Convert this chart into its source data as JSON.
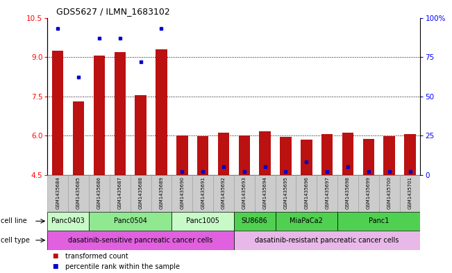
{
  "title": "GDS5627 / ILMN_1683102",
  "samples": [
    "GSM1435684",
    "GSM1435685",
    "GSM1435686",
    "GSM1435687",
    "GSM1435688",
    "GSM1435689",
    "GSM1435690",
    "GSM1435691",
    "GSM1435692",
    "GSM1435693",
    "GSM1435694",
    "GSM1435695",
    "GSM1435696",
    "GSM1435697",
    "GSM1435698",
    "GSM1435699",
    "GSM1435700",
    "GSM1435701"
  ],
  "transformed_counts": [
    9.25,
    7.3,
    9.05,
    9.2,
    7.55,
    9.3,
    6.0,
    5.98,
    6.1,
    6.0,
    6.15,
    5.95,
    5.85,
    6.05,
    6.1,
    5.88,
    5.98,
    6.05
  ],
  "percentile_ranks": [
    93,
    62,
    87,
    87,
    72,
    93,
    2,
    2,
    5,
    2,
    5,
    2,
    8,
    2,
    5,
    2,
    2,
    2
  ],
  "y_min": 4.5,
  "y_max": 10.5,
  "y_left_ticks": [
    4.5,
    6.0,
    7.5,
    9.0,
    10.5
  ],
  "y_right_ticks": [
    0,
    25,
    50,
    75,
    100
  ],
  "cell_lines": [
    {
      "label": "Panc0403",
      "start": 0,
      "end": 2,
      "color": "#c8fac8"
    },
    {
      "label": "Panc0504",
      "start": 2,
      "end": 6,
      "color": "#90e890"
    },
    {
      "label": "Panc1005",
      "start": 6,
      "end": 9,
      "color": "#c8fac8"
    },
    {
      "label": "SU8686",
      "start": 9,
      "end": 11,
      "color": "#50d050"
    },
    {
      "label": "MiaPaCa2",
      "start": 11,
      "end": 14,
      "color": "#50d050"
    },
    {
      "label": "Panc1",
      "start": 14,
      "end": 18,
      "color": "#50d050"
    }
  ],
  "cell_types": [
    {
      "label": "dasatinib-sensitive pancreatic cancer cells",
      "start": 0,
      "end": 9,
      "color": "#e060e0"
    },
    {
      "label": "dasatinib-resistant pancreatic cancer cells",
      "start": 9,
      "end": 18,
      "color": "#e8b8e8"
    }
  ],
  "bar_color": "#bb1111",
  "dot_color": "#0000cc",
  "bg_color": "#ffffff",
  "bar_width": 0.55,
  "gsm_box_color": "#cccccc",
  "gsm_box_edge_color": "#999999"
}
